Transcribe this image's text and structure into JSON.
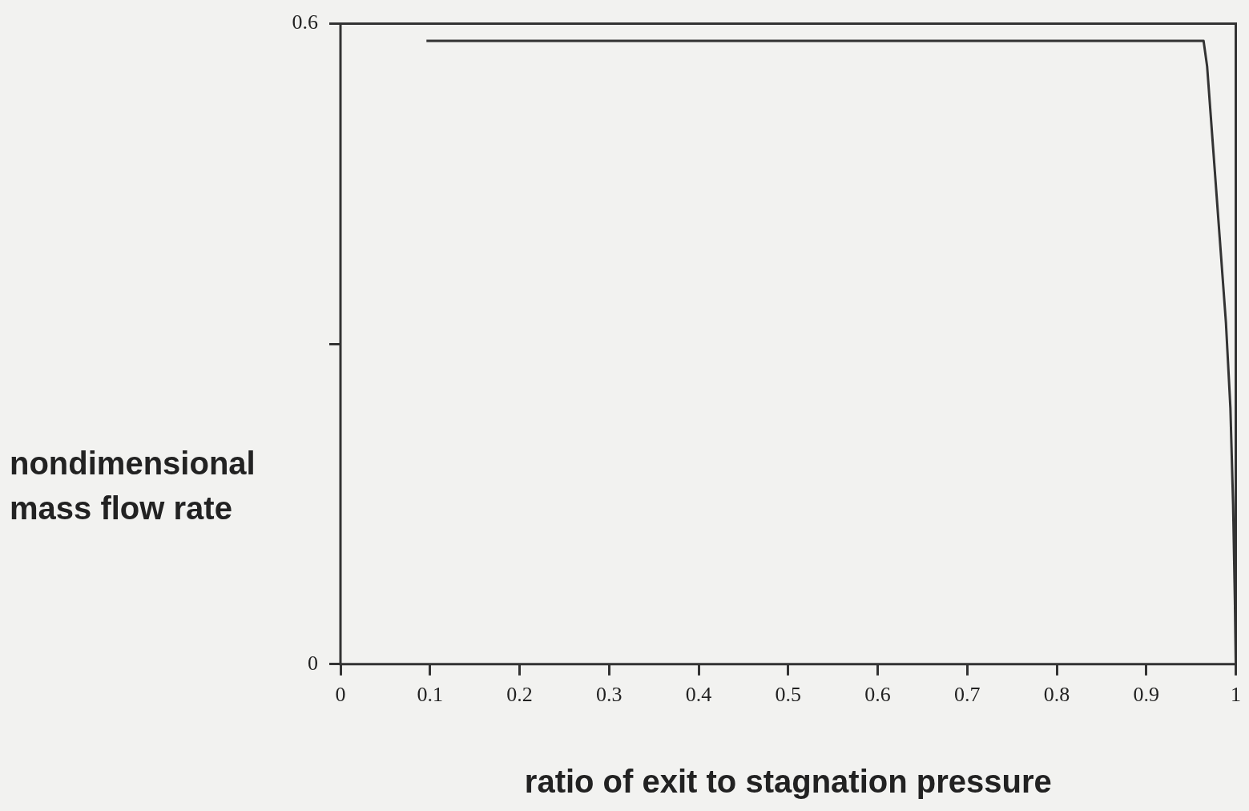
{
  "chart_data": {
    "type": "line",
    "xlabel": "ratio of exit to stagnation pressure",
    "ylabel": "nondimensional mass flow rate",
    "xlim": [
      0,
      1
    ],
    "xticks": [
      0,
      0.1,
      0.2,
      0.3,
      0.4,
      0.5,
      0.6,
      0.7,
      0.8,
      0.9,
      1
    ],
    "ylim": [
      0,
      0.6
    ],
    "yticks": [
      0,
      {
        "value": 0.3,
        "label": null
      },
      0.6
    ],
    "grid": false,
    "legend": false,
    "marker": "none",
    "line_style": "solid",
    "series": [
      {
        "color": "#333333",
        "x": [
          0.096,
          0.964,
          0.968,
          0.975,
          0.982,
          0.989,
          0.994,
          0.997,
          0.999,
          1.0
        ],
        "values": [
          0.584,
          0.584,
          0.56,
          0.48,
          0.4,
          0.32,
          0.24,
          0.15,
          0.06,
          0
        ]
      }
    ]
  }
}
